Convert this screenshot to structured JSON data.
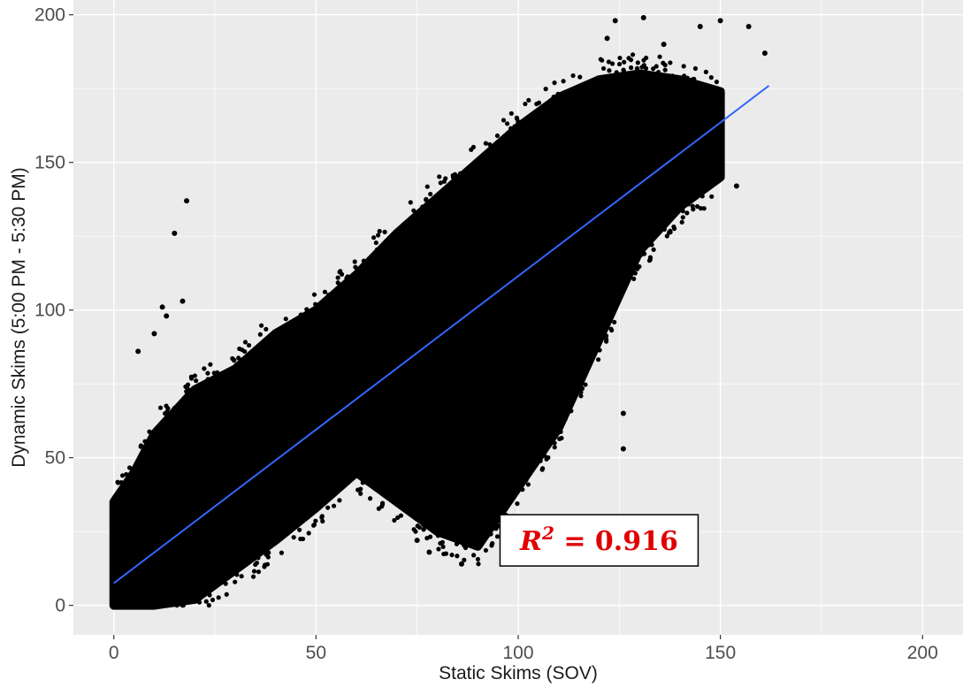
{
  "chart_data": {
    "type": "scatter",
    "title": "",
    "xlabel": "Static Skims (SOV)",
    "ylabel": "Dynamic Skims (5:00 PM - 5:30 PM)",
    "xlim": [
      -10,
      210
    ],
    "ylim": [
      -10,
      205
    ],
    "x_ticks": [
      0,
      50,
      100,
      150,
      200
    ],
    "y_ticks": [
      0,
      50,
      100,
      150,
      200
    ],
    "grid": true,
    "legend": "none",
    "colors": {
      "panel": "#ebebeb",
      "grid": "#ffffff",
      "points": "#000000",
      "fit_line": "#3366ff",
      "annotation": "#e00000"
    },
    "series": [
      {
        "marker": "point",
        "note_values_sampled_from_dense_cloud": false,
        "cloud_bounds": {
          "upper": [
            [
              0,
              35
            ],
            [
              5,
              45
            ],
            [
              10,
              58
            ],
            [
              20,
              73
            ],
            [
              30,
              80
            ],
            [
              40,
              92
            ],
            [
              50,
              100
            ],
            [
              60,
              112
            ],
            [
              70,
              126
            ],
            [
              80,
              138
            ],
            [
              90,
              150
            ],
            [
              100,
              162
            ],
            [
              110,
              172
            ],
            [
              120,
              178
            ],
            [
              130,
              180
            ],
            [
              140,
              178
            ],
            [
              150,
              174
            ]
          ],
          "lower": [
            [
              0,
              0
            ],
            [
              10,
              0
            ],
            [
              20,
              2
            ],
            [
              30,
              12
            ],
            [
              40,
              22
            ],
            [
              50,
              33
            ],
            [
              60,
              45
            ],
            [
              70,
              35
            ],
            [
              80,
              25
            ],
            [
              90,
              20
            ],
            [
              100,
              40
            ],
            [
              110,
              60
            ],
            [
              120,
              90
            ],
            [
              130,
              120
            ],
            [
              140,
              135
            ],
            [
              150,
              145
            ]
          ]
        },
        "outliers": [
          {
            "x": 18,
            "y": 137
          },
          {
            "x": 15,
            "y": 126
          },
          {
            "x": 6,
            "y": 86
          },
          {
            "x": 10,
            "y": 92
          },
          {
            "x": 12,
            "y": 101
          },
          {
            "x": 17,
            "y": 103
          },
          {
            "x": 13,
            "y": 98
          },
          {
            "x": 124,
            "y": 198
          },
          {
            "x": 131,
            "y": 199
          },
          {
            "x": 145,
            "y": 196
          },
          {
            "x": 150,
            "y": 198
          },
          {
            "x": 157,
            "y": 196
          },
          {
            "x": 161,
            "y": 187
          },
          {
            "x": 154,
            "y": 142
          },
          {
            "x": 126,
            "y": 53
          },
          {
            "x": 126,
            "y": 65
          },
          {
            "x": 78,
            "y": 18
          },
          {
            "x": 86,
            "y": 14
          },
          {
            "x": 75,
            "y": 22
          },
          {
            "x": 98,
            "y": 28
          },
          {
            "x": 122,
            "y": 192
          },
          {
            "x": 136,
            "y": 190
          }
        ]
      }
    ],
    "fit_line": {
      "intercept": 7.5,
      "slope": 1.04,
      "x_range": [
        0,
        162
      ]
    },
    "annotation": {
      "text_main": "R",
      "text_sup": "2",
      "text_rest": " = 0.916",
      "x": 120,
      "y": 22
    }
  }
}
